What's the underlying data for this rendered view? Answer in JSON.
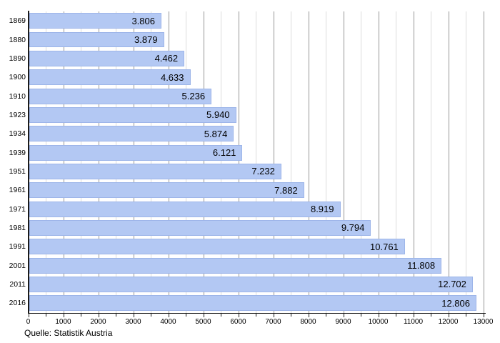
{
  "figure": {
    "source_caption": "Quelle: Statistik Austria"
  },
  "chart_data": {
    "type": "bar",
    "orientation": "horizontal",
    "title": "",
    "xlabel": "",
    "ylabel": "",
    "categories": [
      "1869",
      "1880",
      "1890",
      "1900",
      "1910",
      "1923",
      "1934",
      "1939",
      "1951",
      "1961",
      "1971",
      "1981",
      "1991",
      "2001",
      "2011",
      "2016"
    ],
    "values": [
      3806,
      3879,
      4462,
      4633,
      5236,
      5940,
      5874,
      6121,
      7232,
      7882,
      8919,
      9794,
      10761,
      11808,
      12702,
      12806
    ],
    "value_labels": [
      "3.806",
      "3.879",
      "4.462",
      "4.633",
      "5.236",
      "5.940",
      "5.874",
      "6.121",
      "7.232",
      "7.882",
      "8.919",
      "9.794",
      "10.761",
      "11.808",
      "12.702",
      "12.806"
    ],
    "xlim": [
      0,
      13000
    ],
    "x_tick_labels": [
      "0",
      "1000",
      "2000",
      "3000",
      "4000",
      "5000",
      "6000",
      "7000",
      "8000",
      "9000",
      "10000",
      "11000",
      "12000",
      "13000"
    ],
    "x_major_tick_step": 1000,
    "x_minor_tick_step": 500,
    "grid": "vertical",
    "legend": false,
    "source": "Quelle: Statistik Austria",
    "colors": {
      "bar_fill": "#b3c8f3",
      "bar_border": "#9db5e9",
      "grid_major": "#969696",
      "grid_minor": "#dcdcdc",
      "axis": "#1a1a1a",
      "text": "#000000",
      "background": "#ffffff"
    }
  }
}
